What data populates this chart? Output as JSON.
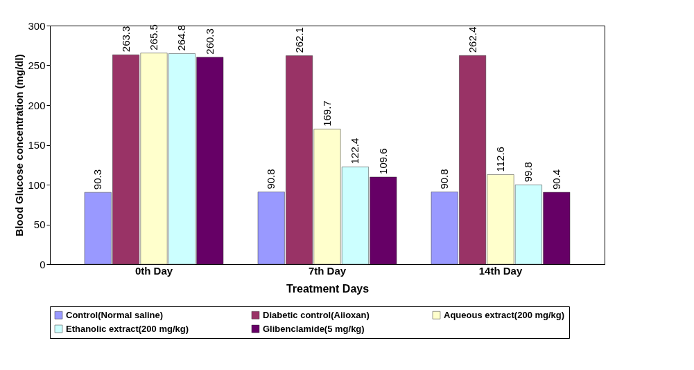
{
  "chart_data": {
    "type": "bar",
    "xlabel": "Treatment Days",
    "ylabel": "Blood Glucose concentration (mg/dl)",
    "categories": [
      "0th Day",
      "7th Day",
      "14th Day"
    ],
    "series": [
      {
        "name": "Control(Normal saline)",
        "color": "#9999ff",
        "values": [
          90.3,
          90.8,
          90.8
        ]
      },
      {
        "name": "Diabetic control(Aiioxan)",
        "color": "#993366",
        "values": [
          263.3,
          262.1,
          262.4
        ]
      },
      {
        "name": "Aqueous extract(200 mg/kg)",
        "color": "#ffffcc",
        "values": [
          265.5,
          169.7,
          112.6
        ]
      },
      {
        "name": "Ethanolic extract(200 mg/kg)",
        "color": "#ccffff",
        "values": [
          264.8,
          122.4,
          99.8
        ]
      },
      {
        "name": "Glibenclamide(5 mg/kg)",
        "color": "#660066",
        "values": [
          260.3,
          109.6,
          90.4
        ]
      }
    ],
    "ylim": [
      0,
      300
    ],
    "yticks": [
      0,
      50,
      100,
      150,
      200,
      250,
      300
    ],
    "grid": false,
    "legend": "bottom",
    "data_labels": true
  }
}
